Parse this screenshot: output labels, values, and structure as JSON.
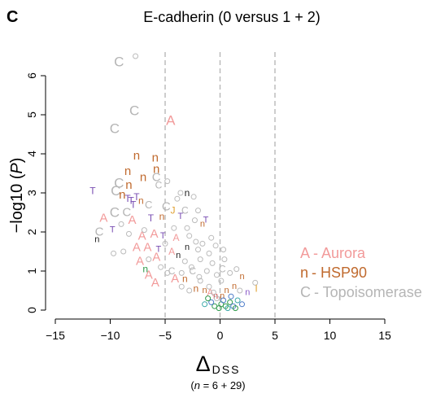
{
  "panel_label": "C",
  "chart_data": {
    "type": "scatter",
    "title": "E-cadherin (0 versus 1 + 2)",
    "xlabel_symbol": "Δ",
    "xlabel_subscript": "DSS",
    "xlabel_note_prefix": "(",
    "xlabel_note_n": "n",
    "xlabel_note_rest": " = 6 + 29)",
    "ylabel_prefix": "−log10 (",
    "ylabel_var": "P",
    "ylabel_suffix": ")",
    "xlim": [
      -15,
      15
    ],
    "ylim": [
      0,
      6.5
    ],
    "xticks": [
      -15,
      -10,
      -5,
      0,
      5,
      10,
      15
    ],
    "xtick_labels": [
      "−15",
      "−10",
      "−5",
      "0",
      "5",
      "10",
      "15"
    ],
    "yticks": [
      0,
      1,
      2,
      3,
      4,
      5,
      6
    ],
    "ytick_labels": [
      "0",
      "1",
      "2",
      "3",
      "4",
      "5",
      "6"
    ],
    "reference_lines_x": [
      -5,
      0,
      5
    ],
    "grid": false,
    "legend_position": "right",
    "legend": [
      {
        "marker": "A",
        "label": "- Aurora",
        "color": "#f29a9a"
      },
      {
        "marker": "n",
        "label": "- HSP90",
        "color": "#c06a2e"
      },
      {
        "marker": "C",
        "label": "- Topoisomerase",
        "color": "#b5b5b5"
      }
    ],
    "colors": {
      "A": "#f29a9a",
      "n": "#c06a2e",
      "C": "#b5b5b5",
      "T": "#7a4fb3",
      "blackn": "#222222",
      "gray": "#bbbbbb",
      "green": "#2e9a4a",
      "blue": "#4a7ac8",
      "teal": "#3aa8a8",
      "orange": "#e0a030",
      "red": "#d23a3a",
      "pink": "#e6739a",
      "purple": "#8a5ac8"
    },
    "points": [
      {
        "x": -7.7,
        "y": 6.5,
        "m": "o",
        "c": "gray"
      },
      {
        "x": -9.2,
        "y": 6.35,
        "m": "C",
        "c": "C",
        "s": 17
      },
      {
        "x": -7.8,
        "y": 5.1,
        "m": "C",
        "c": "C",
        "s": 17
      },
      {
        "x": -9.6,
        "y": 4.65,
        "m": "C",
        "c": "C",
        "s": 17
      },
      {
        "x": -4.5,
        "y": 4.85,
        "m": "A",
        "c": "A",
        "s": 17
      },
      {
        "x": -7.6,
        "y": 3.95,
        "m": "n",
        "c": "n",
        "s": 15
      },
      {
        "x": -5.9,
        "y": 3.9,
        "m": "n",
        "c": "n",
        "s": 15
      },
      {
        "x": -5.8,
        "y": 3.6,
        "m": "n",
        "c": "n",
        "s": 15
      },
      {
        "x": -8.4,
        "y": 3.55,
        "m": "n",
        "c": "n",
        "s": 15
      },
      {
        "x": -7.0,
        "y": 3.4,
        "m": "n",
        "c": "n",
        "s": 15
      },
      {
        "x": -5.8,
        "y": 3.4,
        "m": "C",
        "c": "C",
        "s": 15
      },
      {
        "x": -9.2,
        "y": 3.25,
        "m": "C",
        "c": "C",
        "s": 17
      },
      {
        "x": -8.3,
        "y": 3.2,
        "m": "n",
        "c": "n",
        "s": 15
      },
      {
        "x": -9.5,
        "y": 3.05,
        "m": "C",
        "c": "C",
        "s": 17
      },
      {
        "x": -11.6,
        "y": 3.05,
        "m": "T",
        "c": "T",
        "s": 12
      },
      {
        "x": -8.9,
        "y": 2.95,
        "m": "n",
        "c": "n",
        "s": 15
      },
      {
        "x": -8.4,
        "y": 2.85,
        "m": "T",
        "c": "T",
        "s": 12
      },
      {
        "x": -8.1,
        "y": 2.8,
        "m": "T",
        "c": "T",
        "s": 12
      },
      {
        "x": -7.6,
        "y": 2.9,
        "m": "T",
        "c": "T",
        "s": 12
      },
      {
        "x": -7.9,
        "y": 2.7,
        "m": "T",
        "c": "T",
        "s": 12
      },
      {
        "x": -7.2,
        "y": 2.8,
        "m": "n",
        "c": "n",
        "s": 12
      },
      {
        "x": -5.6,
        "y": 3.2,
        "m": "C",
        "c": "C",
        "s": 12
      },
      {
        "x": -4.8,
        "y": 3.3,
        "m": "o",
        "c": "gray"
      },
      {
        "x": -3.6,
        "y": 3.0,
        "m": "o",
        "c": "gray"
      },
      {
        "x": -3.0,
        "y": 3.0,
        "m": "n",
        "c": "blackn",
        "s": 12
      },
      {
        "x": -2.4,
        "y": 2.9,
        "m": "o",
        "c": "gray"
      },
      {
        "x": -4.9,
        "y": 2.65,
        "m": "C",
        "c": "C",
        "s": 15
      },
      {
        "x": -4.3,
        "y": 2.55,
        "m": "J",
        "c": "orange",
        "s": 12
      },
      {
        "x": -3.2,
        "y": 2.55,
        "m": "C",
        "c": "C",
        "s": 12
      },
      {
        "x": -6.5,
        "y": 2.7,
        "m": "C",
        "c": "C",
        "s": 13
      },
      {
        "x": -9.6,
        "y": 2.5,
        "m": "C",
        "c": "C",
        "s": 17
      },
      {
        "x": -8.5,
        "y": 2.5,
        "m": "C",
        "c": "C",
        "s": 15
      },
      {
        "x": -10.6,
        "y": 2.35,
        "m": "A",
        "c": "A",
        "s": 15
      },
      {
        "x": -8.0,
        "y": 2.3,
        "m": "A",
        "c": "A",
        "s": 15
      },
      {
        "x": -6.3,
        "y": 2.35,
        "m": "T",
        "c": "T",
        "s": 12
      },
      {
        "x": -5.3,
        "y": 2.4,
        "m": "n",
        "c": "n",
        "s": 12
      },
      {
        "x": -3.6,
        "y": 2.4,
        "m": "T",
        "c": "T",
        "s": 11
      },
      {
        "x": -1.3,
        "y": 2.3,
        "m": "T",
        "c": "T",
        "s": 11
      },
      {
        "x": -1.6,
        "y": 2.2,
        "m": "n",
        "c": "n",
        "s": 11
      },
      {
        "x": -2.3,
        "y": 2.3,
        "m": "o",
        "c": "gray"
      },
      {
        "x": -11.0,
        "y": 2.0,
        "m": "C",
        "c": "C",
        "s": 15
      },
      {
        "x": -9.8,
        "y": 2.05,
        "m": "T",
        "c": "T",
        "s": 11
      },
      {
        "x": -11.2,
        "y": 1.8,
        "m": "n",
        "c": "blackn",
        "s": 11
      },
      {
        "x": -8.3,
        "y": 1.95,
        "m": "o",
        "c": "gray"
      },
      {
        "x": -7.1,
        "y": 1.9,
        "m": "A",
        "c": "A",
        "s": 15
      },
      {
        "x": -6.0,
        "y": 1.95,
        "m": "A",
        "c": "A",
        "s": 15
      },
      {
        "x": -5.2,
        "y": 1.9,
        "m": "T",
        "c": "T",
        "s": 11
      },
      {
        "x": -4.0,
        "y": 1.85,
        "m": "A",
        "c": "A",
        "s": 12
      },
      {
        "x": -2.8,
        "y": 1.9,
        "m": "o",
        "c": "gray"
      },
      {
        "x": -0.8,
        "y": 1.85,
        "m": "o",
        "c": "gray"
      },
      {
        "x": -7.6,
        "y": 1.6,
        "m": "A",
        "c": "A",
        "s": 15
      },
      {
        "x": -6.6,
        "y": 1.6,
        "m": "A",
        "c": "A",
        "s": 15
      },
      {
        "x": -5.6,
        "y": 1.55,
        "m": "T",
        "c": "T",
        "s": 11
      },
      {
        "x": -5.8,
        "y": 1.35,
        "m": "A",
        "c": "A",
        "s": 15
      },
      {
        "x": -4.4,
        "y": 1.5,
        "m": "A",
        "c": "A",
        "s": 12
      },
      {
        "x": -3.0,
        "y": 1.6,
        "m": "n",
        "c": "blackn",
        "s": 11
      },
      {
        "x": -2.0,
        "y": 1.55,
        "m": "o",
        "c": "gray"
      },
      {
        "x": -9.7,
        "y": 1.45,
        "m": "o",
        "c": "gray"
      },
      {
        "x": -7.3,
        "y": 1.25,
        "m": "A",
        "c": "A",
        "s": 15
      },
      {
        "x": -6.8,
        "y": 1.05,
        "m": "n",
        "c": "green",
        "s": 12
      },
      {
        "x": -3.8,
        "y": 1.4,
        "m": "n",
        "c": "blackn",
        "s": 11
      },
      {
        "x": -3.2,
        "y": 1.25,
        "m": "o",
        "c": "gray"
      },
      {
        "x": -1.8,
        "y": 1.3,
        "m": "o",
        "c": "gray"
      },
      {
        "x": -4.4,
        "y": 1.0,
        "m": "C",
        "c": "C",
        "s": 12
      },
      {
        "x": -3.5,
        "y": 0.95,
        "m": "o",
        "c": "gray"
      },
      {
        "x": -2.5,
        "y": 1.0,
        "m": "C",
        "c": "C",
        "s": 12
      },
      {
        "x": -4.1,
        "y": 0.8,
        "m": "A",
        "c": "A",
        "s": 15
      },
      {
        "x": -5.9,
        "y": 0.7,
        "m": "A",
        "c": "A",
        "s": 15
      },
      {
        "x": -3.2,
        "y": 0.8,
        "m": "n",
        "c": "n",
        "s": 12
      },
      {
        "x": -1.8,
        "y": 0.75,
        "m": "o",
        "c": "gray"
      },
      {
        "x": -6.5,
        "y": 0.9,
        "m": "A",
        "c": "A",
        "s": 15
      },
      {
        "x": -2.2,
        "y": 0.55,
        "m": "n",
        "c": "n",
        "s": 12
      },
      {
        "x": -1.4,
        "y": 0.5,
        "m": "n",
        "c": "n",
        "s": 11
      },
      {
        "x": -0.9,
        "y": 0.45,
        "m": "A",
        "c": "A",
        "s": 12
      },
      {
        "x": -0.4,
        "y": 0.35,
        "m": "n",
        "c": "red",
        "s": 11
      },
      {
        "x": 0.2,
        "y": 0.35,
        "m": "n",
        "c": "n",
        "s": 11
      },
      {
        "x": 0.6,
        "y": 0.5,
        "m": "n",
        "c": "n",
        "s": 11
      },
      {
        "x": 1.3,
        "y": 0.6,
        "m": "n",
        "c": "n",
        "s": 11
      },
      {
        "x": 1.8,
        "y": 0.5,
        "m": "o",
        "c": "gray"
      },
      {
        "x": 2.5,
        "y": 0.45,
        "m": "n",
        "c": "purple",
        "s": 11
      },
      {
        "x": 3.2,
        "y": 0.7,
        "m": "o",
        "c": "gray"
      },
      {
        "x": 2.0,
        "y": 0.85,
        "m": "n",
        "c": "n",
        "s": 11
      },
      {
        "x": 0.4,
        "y": 1.3,
        "m": "o",
        "c": "gray"
      },
      {
        "x": 0.2,
        "y": 1.05,
        "m": "C",
        "c": "C",
        "s": 12
      },
      {
        "x": -0.3,
        "y": 0.9,
        "m": "o",
        "c": "gray"
      },
      {
        "x": 0.9,
        "y": 0.95,
        "m": "o",
        "c": "gray"
      },
      {
        "x": 1.5,
        "y": 1.05,
        "m": "o",
        "c": "gray"
      },
      {
        "x": 3.3,
        "y": 0.55,
        "m": "I",
        "c": "orange",
        "s": 12
      },
      {
        "x": 0.1,
        "y": 0.15,
        "m": "o",
        "c": "green"
      },
      {
        "x": 0.5,
        "y": 0.1,
        "m": "o",
        "c": "green"
      },
      {
        "x": 0.9,
        "y": 0.2,
        "m": "o",
        "c": "green"
      },
      {
        "x": 1.2,
        "y": 0.1,
        "m": "o",
        "c": "blue"
      },
      {
        "x": 1.6,
        "y": 0.25,
        "m": "o",
        "c": "teal"
      },
      {
        "x": -0.1,
        "y": 0.05,
        "m": "o",
        "c": "green"
      },
      {
        "x": 0.3,
        "y": 0.25,
        "m": "o",
        "c": "blue"
      },
      {
        "x": 0.7,
        "y": 0.05,
        "m": "o",
        "c": "teal"
      },
      {
        "x": -0.5,
        "y": 0.1,
        "m": "o",
        "c": "green"
      },
      {
        "x": -0.8,
        "y": 0.2,
        "m": "o",
        "c": "blue"
      },
      {
        "x": -1.1,
        "y": 0.3,
        "m": "o",
        "c": "green"
      },
      {
        "x": -1.4,
        "y": 0.15,
        "m": "o",
        "c": "teal"
      },
      {
        "x": -0.3,
        "y": 0.3,
        "m": "o",
        "c": "gray"
      },
      {
        "x": 1.0,
        "y": 0.35,
        "m": "o",
        "c": "blue"
      },
      {
        "x": 1.4,
        "y": 0.05,
        "m": "o",
        "c": "green"
      },
      {
        "x": 2.0,
        "y": 0.15,
        "m": "o",
        "c": "blue"
      },
      {
        "x": -0.6,
        "y": 0.45,
        "m": "o",
        "c": "gray"
      },
      {
        "x": -1.0,
        "y": 0.6,
        "m": "o",
        "c": "gray"
      },
      {
        "x": -2.8,
        "y": 0.5,
        "m": "o",
        "c": "gray"
      },
      {
        "x": -3.5,
        "y": 0.6,
        "m": "o",
        "c": "gray"
      },
      {
        "x": -1.9,
        "y": 0.85,
        "m": "o",
        "c": "gray"
      },
      {
        "x": -2.6,
        "y": 1.1,
        "m": "o",
        "c": "gray"
      },
      {
        "x": -1.2,
        "y": 1.0,
        "m": "o",
        "c": "gray"
      },
      {
        "x": -0.7,
        "y": 1.2,
        "m": "o",
        "c": "gray"
      },
      {
        "x": -1.6,
        "y": 1.7,
        "m": "o",
        "c": "gray"
      },
      {
        "x": -2.2,
        "y": 1.75,
        "m": "o",
        "c": "gray"
      },
      {
        "x": -4.2,
        "y": 2.1,
        "m": "o",
        "c": "gray"
      },
      {
        "x": -5.0,
        "y": 1.7,
        "m": "o",
        "c": "gray"
      },
      {
        "x": -6.9,
        "y": 2.05,
        "m": "o",
        "c": "gray"
      },
      {
        "x": -8.8,
        "y": 1.5,
        "m": "o",
        "c": "gray"
      },
      {
        "x": -9.0,
        "y": 2.2,
        "m": "o",
        "c": "gray"
      },
      {
        "x": -6.5,
        "y": 1.3,
        "m": "o",
        "c": "gray"
      },
      {
        "x": -5.4,
        "y": 1.1,
        "m": "o",
        "c": "gray"
      },
      {
        "x": -4.8,
        "y": 0.95,
        "m": "o",
        "c": "gray"
      },
      {
        "x": -3.0,
        "y": 2.1,
        "m": "o",
        "c": "gray"
      },
      {
        "x": -1.0,
        "y": 1.45,
        "m": "o",
        "c": "gray"
      },
      {
        "x": -0.4,
        "y": 1.65,
        "m": "o",
        "c": "gray"
      },
      {
        "x": 0.3,
        "y": 1.55,
        "m": "o",
        "c": "gray"
      },
      {
        "x": 0.1,
        "y": 0.75,
        "m": "o",
        "c": "gray"
      },
      {
        "x": -3.9,
        "y": 2.85,
        "m": "o",
        "c": "gray"
      },
      {
        "x": -2.0,
        "y": 2.55,
        "m": "o",
        "c": "gray"
      }
    ]
  }
}
